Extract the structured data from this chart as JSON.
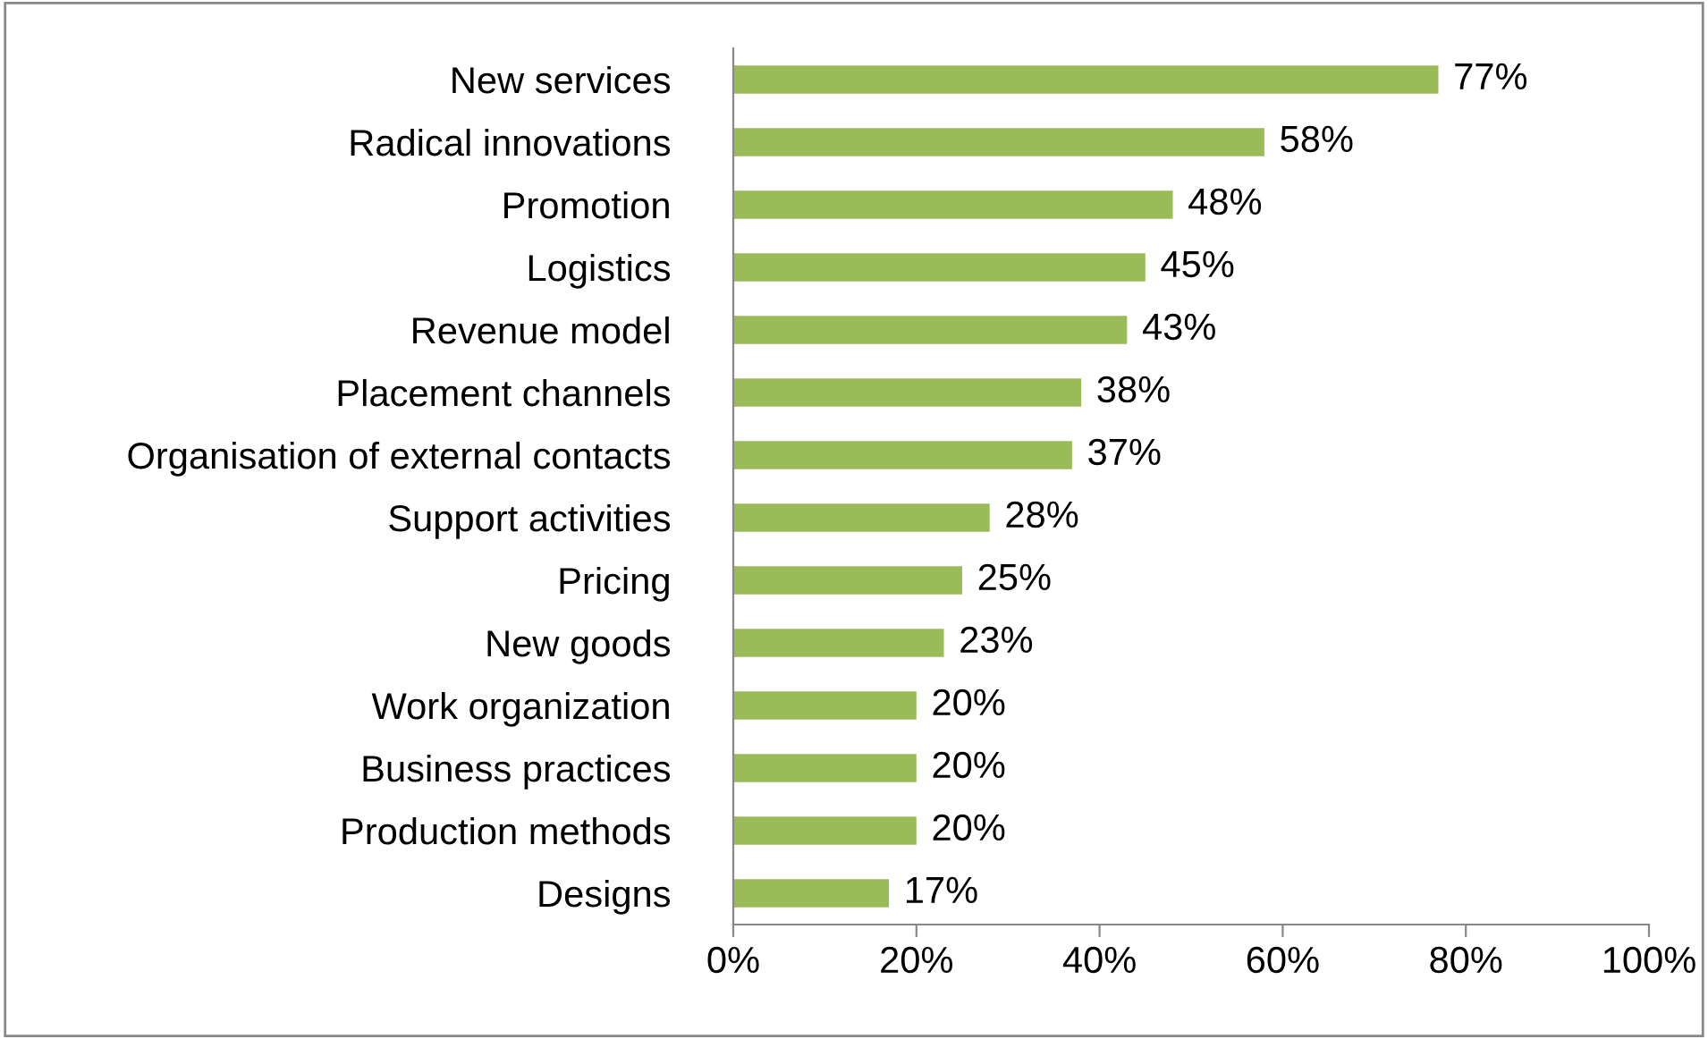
{
  "chart_data": {
    "type": "bar",
    "orientation": "horizontal",
    "categories": [
      "New services",
      "Radical innovations",
      "Promotion",
      "Logistics",
      "Revenue model",
      "Placement channels",
      "Organisation of external contacts",
      "Support activities",
      "Pricing",
      "New goods",
      "Work organization",
      "Business practices",
      "Production methods",
      "Designs"
    ],
    "values": [
      77,
      58,
      48,
      45,
      43,
      38,
      37,
      28,
      25,
      23,
      20,
      20,
      20,
      17
    ],
    "value_labels": [
      "77%",
      "58%",
      "48%",
      "45%",
      "43%",
      "38%",
      "37%",
      "28%",
      "25%",
      "23%",
      "20%",
      "20%",
      "20%",
      "17%"
    ],
    "color": "#9bbb59",
    "xlim": [
      0,
      100
    ],
    "xticks": [
      {
        "value": 0,
        "label": "0%"
      },
      {
        "value": 20,
        "label": "20%"
      },
      {
        "value": 40,
        "label": "40%"
      },
      {
        "value": 60,
        "label": "60%"
      },
      {
        "value": 80,
        "label": "80%"
      },
      {
        "value": 100,
        "label": "100%"
      }
    ],
    "grid": false,
    "legend": false
  }
}
